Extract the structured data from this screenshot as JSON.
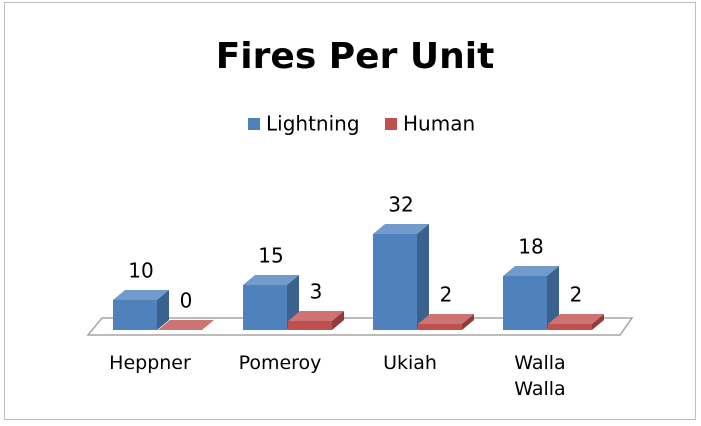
{
  "chart_data": {
    "type": "bar3d",
    "title": "Fires Per Unit",
    "categories": [
      "Heppner",
      "Pomeroy",
      "Ukiah",
      "Walla Walla"
    ],
    "series": [
      {
        "name": "Lightning",
        "color": "#4f81bd",
        "values": [
          10,
          15,
          32,
          18
        ]
      },
      {
        "name": "Human",
        "color": "#c0504d",
        "values": [
          0,
          3,
          2,
          2
        ]
      }
    ],
    "legend": "top"
  }
}
